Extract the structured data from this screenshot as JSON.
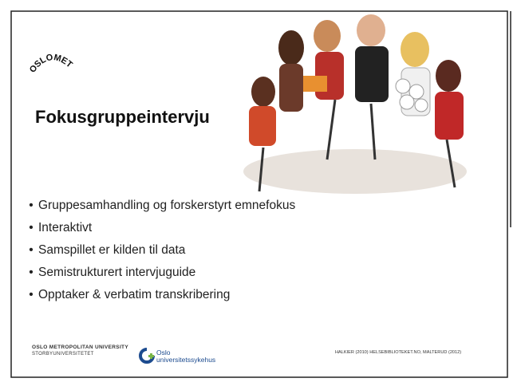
{
  "header": {
    "logo": "OSLOMET",
    "title": "Fokusgruppeintervju"
  },
  "bullets": [
    "Gruppesamhandling og forskerstyrt emnefokus",
    "Interaktivt",
    "Samspillet er kilden til data",
    "Semistrukturert intervjuguide",
    "Opptaker & verbatim transkribering"
  ],
  "footer": {
    "university": [
      "OSLO METROPOLITAN UNIVERSITY",
      "STORBYUNIVERSITETET"
    ],
    "hospital": [
      "Oslo",
      "universitetssykehus"
    ],
    "citation": "HALKIER (2010) HELSEBIBLIOTEKET.NO, MALTERUD (2012)"
  }
}
